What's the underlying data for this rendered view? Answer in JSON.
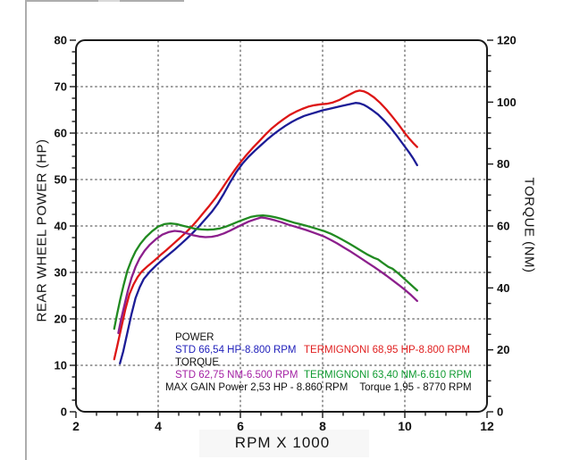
{
  "colors": {
    "std_power": "#2121bb",
    "term_power": "#e01f1f",
    "std_torque": "#a421a4",
    "term_torque": "#0f9a30",
    "curve_std_power": "#1c1c96",
    "curve_term_power": "#dd1616",
    "curve_std_torque": "#8c1f8c",
    "curve_term_torque": "#218a21"
  },
  "axes": {
    "x": {
      "title": "RPM X 1000",
      "min": 2,
      "max": 12,
      "major_ticks": [
        2,
        4,
        6,
        8,
        10,
        12
      ],
      "minor_step": 0.5,
      "gridlines": [
        4,
        6,
        8,
        10
      ]
    },
    "y_left": {
      "title": "REAR WHEEL POWER (HP)",
      "min": 0,
      "max": 80,
      "major_ticks": [
        0,
        10,
        20,
        30,
        40,
        50,
        60,
        70,
        80
      ],
      "minor_step": 2.5,
      "gridlines": [
        10,
        20,
        30,
        40,
        50,
        60,
        70
      ]
    },
    "y_right": {
      "title": "TORQUE (NM)",
      "min": 0,
      "max": 120,
      "major_ticks": [
        0,
        20,
        40,
        60,
        80,
        100,
        120
      ],
      "minor_step": 5
    }
  },
  "legend": {
    "power_label": "POWER",
    "torque_label": "TORQUE",
    "power_std": "STD 66,54 HP-8.800 RPM",
    "power_term": "TERMIGNONI 68,95 HP-8.800 RPM",
    "torque_std": "STD 62,75 NM-6.500 RPM",
    "torque_term": "TERMIGNONI 63,40 NM-6.610 RPM",
    "max_gain_power": "MAX GAIN Power 2,53 HP - 8.860 RPM",
    "max_gain_torque": "Torque 1,95 - 8770 RPM"
  },
  "chart_data": {
    "type": "line",
    "title": "",
    "xlabel": "RPM X 1000",
    "ylabel_left": "REAR WHEEL POWER (HP)",
    "ylabel_right": "TORQUE (NM)",
    "x_range": [
      2,
      12
    ],
    "y_left_range": [
      0,
      80
    ],
    "y_right_range": [
      0,
      120
    ],
    "grid": true,
    "legend_position": "inside bottom-left",
    "series": [
      {
        "id": "std-power",
        "name": "STD power (HP), peak 66,54 HP @ 8.800 RPM",
        "axis": "left",
        "color": "#1c1c96",
        "points": [
          [
            3.07,
            10.4
          ],
          [
            3.15,
            13.0
          ],
          [
            3.25,
            17.0
          ],
          [
            3.35,
            21.0
          ],
          [
            3.45,
            24.5
          ],
          [
            3.55,
            26.8
          ],
          [
            3.65,
            28.6
          ],
          [
            3.8,
            30.2
          ],
          [
            3.95,
            31.5
          ],
          [
            4.1,
            32.7
          ],
          [
            4.25,
            33.8
          ],
          [
            4.4,
            34.9
          ],
          [
            4.55,
            36.1
          ],
          [
            4.7,
            37.3
          ],
          [
            4.85,
            38.6
          ],
          [
            5.0,
            40.0
          ],
          [
            5.15,
            41.5
          ],
          [
            5.3,
            43.0
          ],
          [
            5.45,
            44.8
          ],
          [
            5.6,
            47.0
          ],
          [
            5.75,
            49.4
          ],
          [
            5.9,
            51.6
          ],
          [
            6.05,
            53.4
          ],
          [
            6.2,
            54.9
          ],
          [
            6.35,
            56.2
          ],
          [
            6.5,
            57.4
          ],
          [
            6.65,
            58.6
          ],
          [
            6.8,
            59.7
          ],
          [
            6.95,
            60.7
          ],
          [
            7.1,
            61.6
          ],
          [
            7.25,
            62.4
          ],
          [
            7.4,
            63.1
          ],
          [
            7.55,
            63.7
          ],
          [
            7.7,
            64.1
          ],
          [
            7.85,
            64.5
          ],
          [
            8.0,
            64.9
          ],
          [
            8.15,
            65.2
          ],
          [
            8.3,
            65.5
          ],
          [
            8.45,
            65.8
          ],
          [
            8.6,
            66.1
          ],
          [
            8.7,
            66.3
          ],
          [
            8.8,
            66.5
          ],
          [
            8.9,
            66.4
          ],
          [
            9.0,
            66.1
          ],
          [
            9.1,
            65.6
          ],
          [
            9.2,
            65.0
          ],
          [
            9.35,
            64.0
          ],
          [
            9.5,
            62.7
          ],
          [
            9.65,
            61.2
          ],
          [
            9.8,
            59.5
          ],
          [
            9.95,
            57.7
          ],
          [
            10.1,
            55.9
          ],
          [
            10.2,
            54.6
          ],
          [
            10.3,
            53.1
          ]
        ]
      },
      {
        "id": "term-power",
        "name": "TERMIGNONI power (HP), peak 68,95 HP @ 8.800 RPM",
        "axis": "left",
        "color": "#dd1616",
        "points": [
          [
            2.93,
            11.3
          ],
          [
            3.0,
            14.0
          ],
          [
            3.1,
            18.0
          ],
          [
            3.2,
            22.0
          ],
          [
            3.3,
            25.3
          ],
          [
            3.4,
            27.4
          ],
          [
            3.5,
            29.0
          ],
          [
            3.6,
            30.2
          ],
          [
            3.75,
            31.4
          ],
          [
            3.9,
            32.5
          ],
          [
            4.05,
            33.7
          ],
          [
            4.2,
            34.8
          ],
          [
            4.35,
            36.0
          ],
          [
            4.5,
            37.2
          ],
          [
            4.65,
            38.4
          ],
          [
            4.8,
            39.7
          ],
          [
            4.95,
            41.2
          ],
          [
            5.1,
            42.8
          ],
          [
            5.25,
            44.4
          ],
          [
            5.4,
            46.1
          ],
          [
            5.55,
            48.0
          ],
          [
            5.7,
            50.0
          ],
          [
            5.85,
            51.9
          ],
          [
            6.0,
            53.7
          ],
          [
            6.15,
            55.3
          ],
          [
            6.3,
            56.8
          ],
          [
            6.45,
            58.2
          ],
          [
            6.6,
            59.6
          ],
          [
            6.75,
            60.9
          ],
          [
            6.9,
            62.0
          ],
          [
            7.05,
            63.0
          ],
          [
            7.2,
            63.9
          ],
          [
            7.35,
            64.6
          ],
          [
            7.5,
            65.2
          ],
          [
            7.65,
            65.7
          ],
          [
            7.8,
            66.0
          ],
          [
            7.95,
            66.2
          ],
          [
            8.1,
            66.3
          ],
          [
            8.25,
            66.6
          ],
          [
            8.4,
            67.1
          ],
          [
            8.55,
            67.8
          ],
          [
            8.7,
            68.5
          ],
          [
            8.8,
            68.95
          ],
          [
            8.9,
            69.15
          ],
          [
            9.0,
            69.0
          ],
          [
            9.1,
            68.6
          ],
          [
            9.25,
            67.7
          ],
          [
            9.4,
            66.5
          ],
          [
            9.55,
            65.1
          ],
          [
            9.7,
            63.5
          ],
          [
            9.85,
            61.8
          ],
          [
            10.0,
            60.0
          ],
          [
            10.1,
            58.9
          ],
          [
            10.2,
            57.9
          ],
          [
            10.3,
            57.0
          ]
        ]
      },
      {
        "id": "std-torque",
        "name": "STD torque (NM), peak 62,75 NM @ 6.500 RPM",
        "axis": "right",
        "color": "#8c1f8c",
        "points": [
          [
            3.03,
            25.4
          ],
          [
            3.1,
            30.0
          ],
          [
            3.18,
            34.5
          ],
          [
            3.26,
            39.0
          ],
          [
            3.35,
            43.2
          ],
          [
            3.45,
            46.8
          ],
          [
            3.55,
            49.6
          ],
          [
            3.67,
            52.0
          ],
          [
            3.8,
            54.0
          ],
          [
            3.95,
            55.8
          ],
          [
            4.1,
            57.2
          ],
          [
            4.25,
            58.0
          ],
          [
            4.4,
            58.4
          ],
          [
            4.55,
            58.2
          ],
          [
            4.7,
            57.6
          ],
          [
            4.85,
            57.0
          ],
          [
            5.0,
            56.6
          ],
          [
            5.15,
            56.4
          ],
          [
            5.3,
            56.5
          ],
          [
            5.45,
            56.9
          ],
          [
            5.6,
            57.6
          ],
          [
            5.75,
            58.5
          ],
          [
            5.9,
            59.5
          ],
          [
            6.05,
            60.5
          ],
          [
            6.2,
            61.4
          ],
          [
            6.35,
            62.1
          ],
          [
            6.5,
            62.75
          ],
          [
            6.6,
            62.6
          ],
          [
            6.7,
            62.3
          ],
          [
            6.85,
            61.8
          ],
          [
            7.0,
            61.2
          ],
          [
            7.15,
            60.5
          ],
          [
            7.3,
            59.9
          ],
          [
            7.45,
            59.3
          ],
          [
            7.6,
            58.7
          ],
          [
            7.75,
            58.0
          ],
          [
            7.9,
            57.3
          ],
          [
            8.05,
            56.5
          ],
          [
            8.2,
            55.5
          ],
          [
            8.35,
            54.4
          ],
          [
            8.5,
            53.2
          ],
          [
            8.65,
            52.0
          ],
          [
            8.8,
            50.7
          ],
          [
            8.95,
            49.4
          ],
          [
            9.1,
            48.1
          ],
          [
            9.25,
            46.8
          ],
          [
            9.4,
            45.4
          ],
          [
            9.55,
            44.0
          ],
          [
            9.7,
            42.5
          ],
          [
            9.85,
            41.0
          ],
          [
            10.0,
            39.4
          ],
          [
            10.15,
            37.7
          ],
          [
            10.3,
            35.8
          ]
        ]
      },
      {
        "id": "term-torque",
        "name": "TERMIGNONI torque (NM), peak 63,40 NM @ 6.610 RPM",
        "axis": "right",
        "color": "#218a21",
        "points": [
          [
            2.93,
            26.8
          ],
          [
            3.0,
            31.5
          ],
          [
            3.08,
            36.5
          ],
          [
            3.16,
            41.0
          ],
          [
            3.25,
            45.5
          ],
          [
            3.35,
            49.0
          ],
          [
            3.45,
            51.8
          ],
          [
            3.57,
            54.3
          ],
          [
            3.7,
            56.4
          ],
          [
            3.85,
            58.3
          ],
          [
            4.0,
            59.8
          ],
          [
            4.15,
            60.6
          ],
          [
            4.3,
            60.8
          ],
          [
            4.45,
            60.6
          ],
          [
            4.6,
            60.1
          ],
          [
            4.75,
            59.6
          ],
          [
            4.9,
            59.1
          ],
          [
            5.05,
            58.9
          ],
          [
            5.2,
            58.8
          ],
          [
            5.35,
            58.9
          ],
          [
            5.5,
            59.2
          ],
          [
            5.65,
            59.8
          ],
          [
            5.8,
            60.6
          ],
          [
            5.95,
            61.4
          ],
          [
            6.1,
            62.2
          ],
          [
            6.25,
            62.9
          ],
          [
            6.4,
            63.3
          ],
          [
            6.55,
            63.4
          ],
          [
            6.7,
            63.2
          ],
          [
            6.85,
            62.8
          ],
          [
            7.0,
            62.3
          ],
          [
            7.15,
            61.7
          ],
          [
            7.3,
            61.1
          ],
          [
            7.45,
            60.6
          ],
          [
            7.6,
            60.1
          ],
          [
            7.75,
            59.5
          ],
          [
            7.9,
            58.9
          ],
          [
            8.05,
            58.3
          ],
          [
            8.2,
            57.5
          ],
          [
            8.35,
            56.5
          ],
          [
            8.5,
            55.4
          ],
          [
            8.65,
            54.3
          ],
          [
            8.8,
            53.1
          ],
          [
            8.95,
            51.9
          ],
          [
            9.1,
            50.7
          ],
          [
            9.25,
            49.7
          ],
          [
            9.35,
            49.2
          ],
          [
            9.45,
            48.2
          ],
          [
            9.6,
            46.8
          ],
          [
            9.7,
            46.2
          ],
          [
            9.85,
            44.6
          ],
          [
            10.0,
            42.8
          ],
          [
            10.15,
            41.0
          ],
          [
            10.3,
            39.2
          ]
        ]
      }
    ]
  }
}
